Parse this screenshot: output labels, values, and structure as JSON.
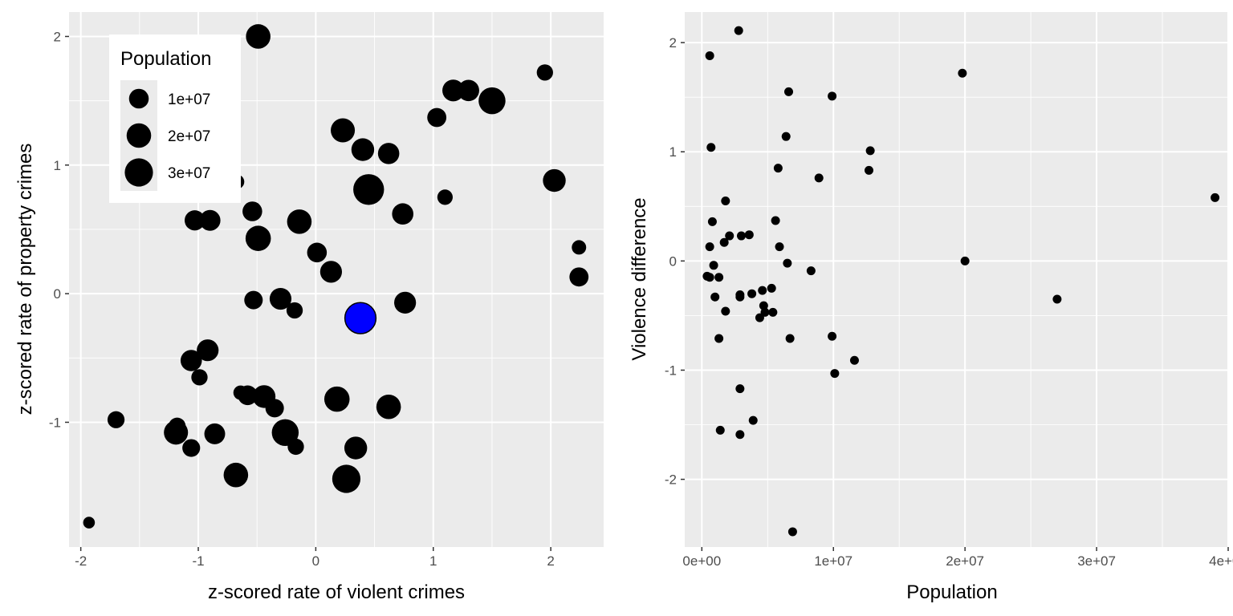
{
  "chart_data": [
    {
      "type": "scatter",
      "xlabel": "z-scored rate of violent crimes",
      "ylabel": "z-scored rate of property crimes",
      "xlim": [
        -2.1,
        2.45
      ],
      "ylim": [
        -1.97,
        2.19
      ],
      "xticks": [
        -2,
        -1,
        0,
        1,
        2
      ],
      "xtick_labels": [
        "-2",
        "-1",
        "0",
        "1",
        "2"
      ],
      "yticks": [
        -1,
        0,
        1,
        2
      ],
      "ytick_labels": [
        "-1",
        "0",
        "1",
        "2"
      ],
      "grid": true,
      "size_variable": "Population",
      "legend": {
        "title": "Population",
        "position": "top-left",
        "entries": [
          {
            "label": "1e+07",
            "value": 10000000
          },
          {
            "label": "2e+07",
            "value": 20000000
          },
          {
            "label": "3e+07",
            "value": 30000000
          }
        ]
      },
      "highlight_color": "#0000ff",
      "points": [
        {
          "x": -0.49,
          "y": 2.0,
          "pop": 20000000
        },
        {
          "x": 1.95,
          "y": 1.72,
          "pop": 5000000
        },
        {
          "x": 1.17,
          "y": 1.58,
          "pop": 14000000
        },
        {
          "x": 1.3,
          "y": 1.58,
          "pop": 13000000
        },
        {
          "x": 1.5,
          "y": 1.5,
          "pop": 26000000
        },
        {
          "x": 1.03,
          "y": 1.37,
          "pop": 9000000
        },
        {
          "x": 0.23,
          "y": 1.27,
          "pop": 19000000
        },
        {
          "x": 0.4,
          "y": 1.12,
          "pop": 16000000
        },
        {
          "x": 0.62,
          "y": 1.09,
          "pop": 13000000
        },
        {
          "x": 2.03,
          "y": 0.88,
          "pop": 16000000
        },
        {
          "x": -0.67,
          "y": 0.87,
          "pop": 3000000
        },
        {
          "x": 0.45,
          "y": 0.81,
          "pop": 38000000
        },
        {
          "x": 1.1,
          "y": 0.75,
          "pop": 4000000
        },
        {
          "x": -0.54,
          "y": 0.64,
          "pop": 10000000
        },
        {
          "x": 0.74,
          "y": 0.62,
          "pop": 13000000
        },
        {
          "x": -1.03,
          "y": 0.57,
          "pop": 11000000
        },
        {
          "x": -0.9,
          "y": 0.57,
          "pop": 12000000
        },
        {
          "x": -0.14,
          "y": 0.56,
          "pop": 20000000
        },
        {
          "x": -0.49,
          "y": 0.43,
          "pop": 22000000
        },
        {
          "x": 2.24,
          "y": 0.36,
          "pop": 3000000
        },
        {
          "x": 0.01,
          "y": 0.32,
          "pop": 10000000
        },
        {
          "x": 0.13,
          "y": 0.17,
          "pop": 14000000
        },
        {
          "x": 2.24,
          "y": 0.13,
          "pop": 9000000
        },
        {
          "x": -0.53,
          "y": -0.05,
          "pop": 8000000
        },
        {
          "x": -0.3,
          "y": -0.04,
          "pop": 14000000
        },
        {
          "x": 0.76,
          "y": -0.07,
          "pop": 14000000
        },
        {
          "x": -0.18,
          "y": -0.13,
          "pop": 5000000
        },
        {
          "x": 0.38,
          "y": -0.19,
          "pop": 39000000,
          "highlight": true
        },
        {
          "x": -0.92,
          "y": -0.44,
          "pop": 14000000
        },
        {
          "x": -1.06,
          "y": -0.52,
          "pop": 13000000
        },
        {
          "x": -0.99,
          "y": -0.65,
          "pop": 5000000
        },
        {
          "x": -0.64,
          "y": -0.77,
          "pop": 3000000
        },
        {
          "x": -0.58,
          "y": -0.79,
          "pop": 10000000
        },
        {
          "x": -0.44,
          "y": -0.8,
          "pop": 16000000
        },
        {
          "x": 0.18,
          "y": -0.82,
          "pop": 22000000
        },
        {
          "x": 0.62,
          "y": -0.88,
          "pop": 20000000
        },
        {
          "x": -0.35,
          "y": -0.89,
          "pop": 8000000
        },
        {
          "x": -1.7,
          "y": -0.98,
          "pop": 6000000
        },
        {
          "x": -1.18,
          "y": -1.03,
          "pop": 6000000
        },
        {
          "x": -1.19,
          "y": -1.08,
          "pop": 19000000
        },
        {
          "x": -0.26,
          "y": -1.08,
          "pop": 26000000
        },
        {
          "x": -0.86,
          "y": -1.09,
          "pop": 12000000
        },
        {
          "x": -1.06,
          "y": -1.2,
          "pop": 7000000
        },
        {
          "x": -0.17,
          "y": -1.19,
          "pop": 5000000
        },
        {
          "x": 0.34,
          "y": -1.2,
          "pop": 16000000
        },
        {
          "x": -0.68,
          "y": -1.41,
          "pop": 20000000
        },
        {
          "x": 0.26,
          "y": -1.44,
          "pop": 30000000
        },
        {
          "x": -1.93,
          "y": -1.78,
          "pop": 1000000
        }
      ]
    },
    {
      "type": "scatter",
      "xlabel": "Population",
      "ylabel": "Violence difference",
      "xlim": [
        -1300000,
        40000000
      ],
      "ylim": [
        -2.62,
        2.28
      ],
      "xticks": [
        0,
        10000000,
        20000000,
        30000000,
        40000000
      ],
      "xtick_labels": [
        "0e+00",
        "1e+07",
        "2e+07",
        "3e+07",
        "4e+07"
      ],
      "yticks": [
        -2,
        -1,
        0,
        1,
        2
      ],
      "ytick_labels": [
        "-2",
        "-1",
        "0",
        "1",
        "2"
      ],
      "grid": true,
      "points": [
        {
          "x": 2800000,
          "y": 2.11
        },
        {
          "x": 600000,
          "y": 1.88
        },
        {
          "x": 19800000,
          "y": 1.72
        },
        {
          "x": 6600000,
          "y": 1.55
        },
        {
          "x": 9900000,
          "y": 1.51
        },
        {
          "x": 6400000,
          "y": 1.14
        },
        {
          "x": 700000,
          "y": 1.04
        },
        {
          "x": 12800000,
          "y": 1.01
        },
        {
          "x": 5800000,
          "y": 0.85
        },
        {
          "x": 12700000,
          "y": 0.83
        },
        {
          "x": 8900000,
          "y": 0.76
        },
        {
          "x": 39000000,
          "y": 0.58
        },
        {
          "x": 1800000,
          "y": 0.55
        },
        {
          "x": 800000,
          "y": 0.36
        },
        {
          "x": 5600000,
          "y": 0.37
        },
        {
          "x": 3600000,
          "y": 0.24
        },
        {
          "x": 2100000,
          "y": 0.23
        },
        {
          "x": 3000000,
          "y": 0.23
        },
        {
          "x": 1700000,
          "y": 0.17
        },
        {
          "x": 600000,
          "y": 0.13
        },
        {
          "x": 5900000,
          "y": 0.13
        },
        {
          "x": 900000,
          "y": -0.04
        },
        {
          "x": 6500000,
          "y": -0.02
        },
        {
          "x": 20000000,
          "y": 0.0
        },
        {
          "x": 8300000,
          "y": -0.09
        },
        {
          "x": 400000,
          "y": -0.14
        },
        {
          "x": 600000,
          "y": -0.15
        },
        {
          "x": 1300000,
          "y": -0.15
        },
        {
          "x": 5300000,
          "y": -0.25
        },
        {
          "x": 4600000,
          "y": -0.27
        },
        {
          "x": 2900000,
          "y": -0.31
        },
        {
          "x": 3800000,
          "y": -0.3
        },
        {
          "x": 1000000,
          "y": -0.33
        },
        {
          "x": 2900000,
          "y": -0.33
        },
        {
          "x": 27000000,
          "y": -0.35
        },
        {
          "x": 4700000,
          "y": -0.41
        },
        {
          "x": 4800000,
          "y": -0.47
        },
        {
          "x": 1800000,
          "y": -0.46
        },
        {
          "x": 5400000,
          "y": -0.47
        },
        {
          "x": 4400000,
          "y": -0.52
        },
        {
          "x": 1300000,
          "y": -0.71
        },
        {
          "x": 6700000,
          "y": -0.71
        },
        {
          "x": 9900000,
          "y": -0.69
        },
        {
          "x": 11600000,
          "y": -0.91
        },
        {
          "x": 10100000,
          "y": -1.03
        },
        {
          "x": 2900000,
          "y": -1.17
        },
        {
          "x": 3900000,
          "y": -1.46
        },
        {
          "x": 1400000,
          "y": -1.55
        },
        {
          "x": 2900000,
          "y": -1.59
        },
        {
          "x": 6900000,
          "y": -2.48
        }
      ]
    }
  ]
}
